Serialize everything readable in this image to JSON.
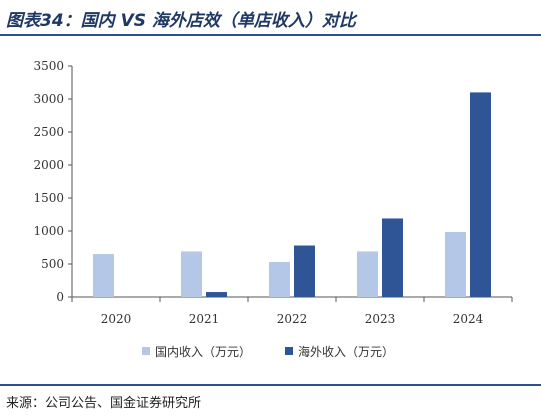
{
  "title": "图表34：国内 VS 海外店效（单店收入）对比",
  "source": "来源：公司公告、国金证券研究所",
  "chart_data": {
    "type": "bar",
    "categories": [
      "2020",
      "2021",
      "2022",
      "2023",
      "2024"
    ],
    "series": [
      {
        "name": "国内收入（万元）",
        "color": "#b4c7e7",
        "values": [
          650,
          690,
          530,
          690,
          985
        ]
      },
      {
        "name": "海外收入（万元）",
        "color": "#2f5597",
        "values": [
          0,
          75,
          780,
          1190,
          3100
        ]
      }
    ],
    "ylim": [
      0,
      3500
    ],
    "yticks": [
      0,
      500,
      1000,
      1500,
      2000,
      2500,
      3000,
      3500
    ],
    "grid": false,
    "legend_position": "bottom"
  }
}
